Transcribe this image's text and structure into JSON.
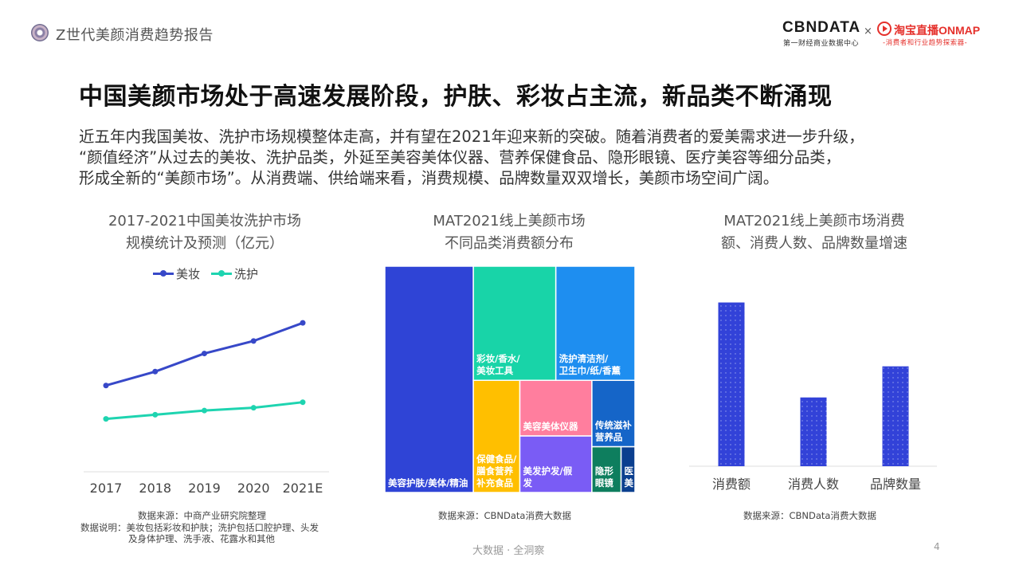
{
  "header": {
    "report_title": "Z世代美颜消费趋势报告",
    "brand_cbn": "CBNDATA",
    "brand_cbn_sub": "第一财经商业数据中心",
    "brand_x": "×",
    "brand_taobao": "淘宝直播ONMAP",
    "brand_taobao_sub": "-消费者和行业趋势探索器-"
  },
  "headline": "中国美颜市场处于高速发展阶段，护肤、彩妆占主流，新品类不断涌现",
  "paragraph": [
    "近五年内我国美妆、洗护市场规模整体走高，并有望在2021年迎来新的突破。随着消费者的爱美需求进一步升级，",
    "“颜值经济”从过去的美妆、洗护品类，外延至美容美体仪器、营养保健食品、隐形眼镜、医疗美容等细分品类，",
    "形成全新的“美颜市场”。从消费端、供给端来看，消费规模、品牌数量双双增长，美颜市场空间广阔。"
  ],
  "colors": {
    "series_makeup": "#3748c8",
    "series_wash": "#1ed4b0",
    "bar": "#3242d8"
  },
  "chart_data": [
    {
      "type": "line",
      "title": [
        "2017-2021中国美妆洗护市场",
        "规模统计及预测（亿元）"
      ],
      "categories": [
        "2017",
        "2018",
        "2019",
        "2020",
        "2021E"
      ],
      "series": [
        {
          "name": "美妆",
          "values": [
            62,
            72,
            85,
            94,
            107
          ]
        },
        {
          "name": "洗护",
          "values": [
            38,
            41,
            44,
            46,
            50
          ]
        }
      ],
      "ylim": [
        0,
        130
      ],
      "legend": "top",
      "grid": false,
      "source": "数据来源：中商产业研究院整理",
      "note": [
        "数据说明：美妆包括彩妆和护肤；洗护包括口腔护理、头发",
        "及身体护理、洗手液、花露水和其他"
      ]
    },
    {
      "type": "treemap",
      "title": [
        "MAT2021线上美颜市场",
        "不同品类消费额分布"
      ],
      "categories": [
        "美容护肤/美体/精油",
        "彩妆/香水/美妆工具",
        "洗护清洁剂/卫生巾/纸/香薰",
        "保健食品/膳食营养补充食品",
        "美容美体仪器",
        "美发护发/假发",
        "传统滋补营养品",
        "隐形眼镜",
        "医美"
      ],
      "labels": [
        "美容护肤/美体/精油",
        "彩妆/香水/\n美妆工具",
        "洗护清洁剂/\n卫生巾/纸/香薰",
        "保健食品/\n膳食营养\n补充食品",
        "美容美体仪器",
        "美发护发/假\n发",
        "传统滋补\n营养品",
        "隐形\n眼镜",
        "医\n美"
      ],
      "values": [
        31.5,
        14.8,
        14.2,
        8.2,
        6.3,
        6.4,
        4.5,
        2.1,
        1.0
      ],
      "colors": [
        "#2f44d6",
        "#18d4a8",
        "#1e8ef0",
        "#ffbf00",
        "#ff7e9e",
        "#7a5cf5",
        "#1565c8",
        "#0e7e5e",
        "#0b3f8f"
      ],
      "source": "数据来源：CBNData消费大数据"
    },
    {
      "type": "bar",
      "title": [
        "MAT2021线上美颜市场消费",
        "额、消费人数、品牌数量增速"
      ],
      "categories": [
        "消费额",
        "消费人数",
        "品牌数量"
      ],
      "values": [
        100,
        42,
        61
      ],
      "ylim": [
        0,
        110
      ],
      "grid": false,
      "source": "数据来源：CBNData消费大数据"
    }
  ],
  "footer": {
    "text": "大数据 · 全洞察",
    "page": "4"
  }
}
